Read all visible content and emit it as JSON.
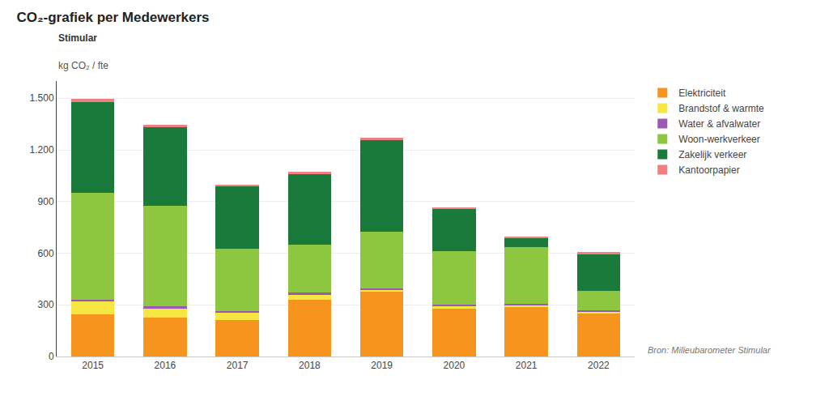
{
  "chart_data": {
    "type": "bar",
    "stacked": true,
    "title": "CO₂-grafiek per Medewerkers",
    "annotations": [
      "Stimular",
      "kg CO₂ / fte",
      "Bron: Milieubarometer Stimular"
    ],
    "categories": [
      "2015",
      "2016",
      "2017",
      "2018",
      "2019",
      "2020",
      "2021",
      "2022"
    ],
    "series": [
      {
        "name": "Elektriciteit",
        "color": "#F7941D",
        "values": [
          245,
          225,
          210,
          330,
          375,
          280,
          285,
          250
        ]
      },
      {
        "name": "Brandstof & warmte",
        "color": "#F5E642",
        "values": [
          75,
          55,
          45,
          30,
          10,
          10,
          10,
          10
        ]
      },
      {
        "name": "Water & afvalwater",
        "color": "#9B59B6",
        "values": [
          10,
          10,
          10,
          10,
          10,
          10,
          10,
          10
        ]
      },
      {
        "name": "Woon-werkverkeer",
        "color": "#8DC63F",
        "values": [
          620,
          585,
          360,
          280,
          330,
          310,
          330,
          110
        ]
      },
      {
        "name": "Zakelijk verkeer",
        "color": "#1A7A3C",
        "values": [
          530,
          455,
          365,
          410,
          530,
          245,
          50,
          215
        ]
      },
      {
        "name": "Kantoorpapier",
        "color": "#F08080",
        "values": [
          15,
          15,
          10,
          15,
          15,
          10,
          10,
          10
        ]
      }
    ],
    "ylim": [
      0,
      1600
    ],
    "yticks": [
      0,
      300,
      600,
      900,
      {
        "value": 1200,
        "label": "1.200"
      },
      {
        "value": 1500,
        "label": "1.500"
      }
    ],
    "grid": true,
    "legend": "right"
  }
}
